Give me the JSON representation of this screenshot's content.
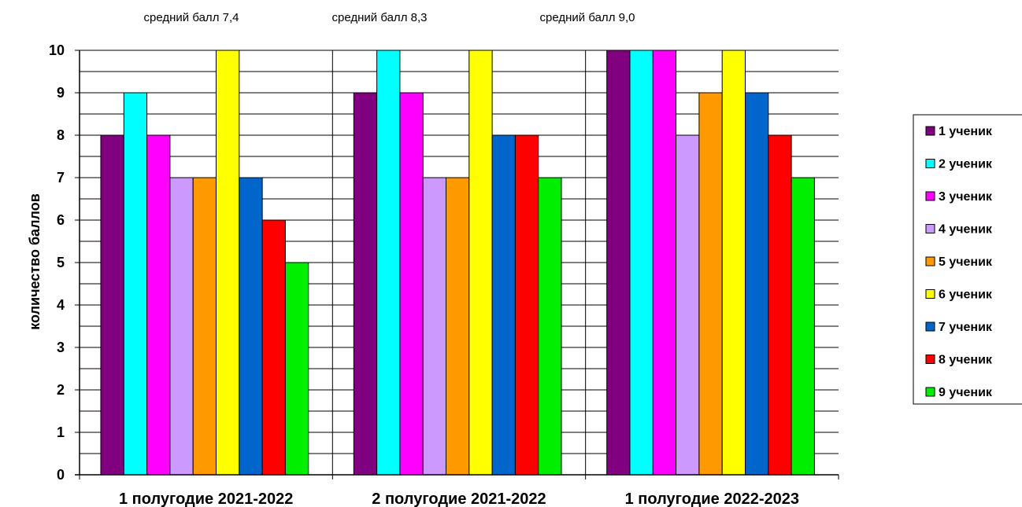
{
  "chart_data": {
    "type": "bar",
    "title": "",
    "xlabel": "",
    "ylabel": "количество баллов",
    "ylim": [
      0,
      10
    ],
    "yticks": [
      0,
      1,
      2,
      3,
      4,
      5,
      6,
      7,
      8,
      9,
      10
    ],
    "grid": true,
    "legend_position": "right",
    "categories": [
      "1 полугодие 2021-2022",
      "2 полугодие 2021-2022",
      "1 полугодие 2022-2023"
    ],
    "annotations": [
      "средний балл 7,4",
      "средний балл 8,3",
      "средний балл 9,0"
    ],
    "series": [
      {
        "name": "1 ученик",
        "color": "#800080",
        "values": [
          8,
          9,
          10
        ]
      },
      {
        "name": "2 ученик",
        "color": "#00FFFF",
        "values": [
          9,
          10,
          10
        ]
      },
      {
        "name": "3 ученик",
        "color": "#FF00FF",
        "values": [
          8,
          9,
          10
        ]
      },
      {
        "name": "4 ученик",
        "color": "#CC99FF",
        "values": [
          7,
          7,
          8
        ]
      },
      {
        "name": "5 ученик",
        "color": "#FF9900",
        "values": [
          7,
          7,
          9
        ]
      },
      {
        "name": "6 ученик",
        "color": "#FFFF00",
        "values": [
          10,
          10,
          10
        ]
      },
      {
        "name": "7 ученик",
        "color": "#0066CC",
        "values": [
          7,
          8,
          9
        ]
      },
      {
        "name": "8 ученик",
        "color": "#FF0000",
        "values": [
          6,
          8,
          8
        ]
      },
      {
        "name": "9 ученик",
        "color": "#00EE00",
        "values": [
          5,
          7,
          7
        ]
      }
    ]
  }
}
